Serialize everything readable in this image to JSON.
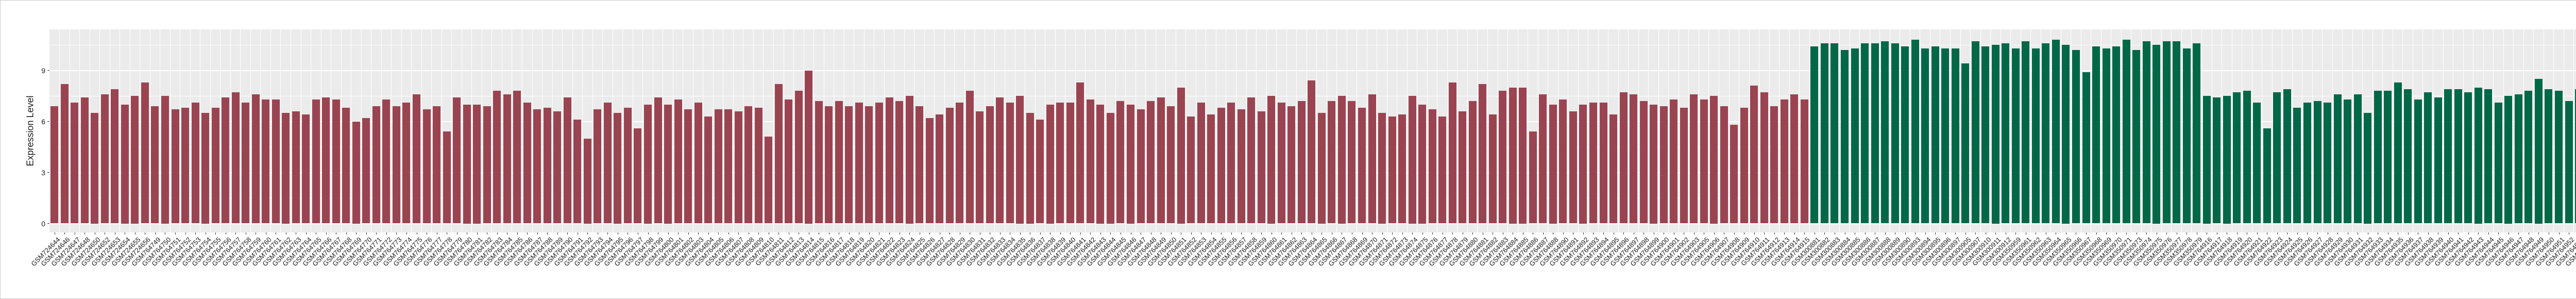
{
  "chart_data": {
    "type": "bar",
    "title": "",
    "xlabel": "",
    "ylabel": "Expression Level",
    "ylim": [
      0,
      11.4
    ],
    "yticks": [
      0,
      3,
      6,
      9
    ],
    "ytick_labels": [
      "0",
      "3",
      "6",
      "9"
    ],
    "yminor": [
      1.5,
      4.5,
      7.5,
      10.5
    ],
    "grid": true,
    "legend": false,
    "panel_background": "#EBEBEB",
    "gridline_color": "#FFFFFF",
    "axis_text_color": "#1a1a1a",
    "group_split_index": 175,
    "series": [
      {
        "name": "group-1-red",
        "color": "#9B4451",
        "count": 175
      },
      {
        "name": "group-2-green",
        "color": "#006847",
        "count": 86
      }
    ],
    "categories": [
      "GSM724644",
      "GSM724646",
      "GSM724647",
      "GSM724648",
      "GSM724650",
      "GSM724652",
      "GSM724653",
      "GSM724654",
      "GSM724655",
      "GSM724656",
      "GSM764749",
      "GSM764750",
      "GSM764751",
      "GSM764752",
      "GSM764753",
      "GSM764754",
      "GSM764755",
      "GSM764756",
      "GSM764757",
      "GSM764758",
      "GSM764759",
      "GSM764760",
      "GSM764761",
      "GSM764762",
      "GSM764763",
      "GSM764764",
      "GSM764765",
      "GSM764766",
      "GSM764767",
      "GSM764768",
      "GSM764769",
      "GSM764770",
      "GSM764771",
      "GSM764772",
      "GSM764773",
      "GSM764774",
      "GSM764775",
      "GSM764776",
      "GSM764777",
      "GSM764778",
      "GSM764779",
      "GSM764780",
      "GSM764781",
      "GSM764782",
      "GSM764783",
      "GSM764784",
      "GSM764785",
      "GSM764786",
      "GSM764787",
      "GSM764788",
      "GSM764789",
      "GSM764790",
      "GSM764791",
      "GSM764792",
      "GSM764793",
      "GSM764794",
      "GSM764795",
      "GSM764796",
      "GSM764797",
      "GSM764798",
      "GSM764799",
      "GSM764800",
      "GSM764801",
      "GSM764802",
      "GSM764803",
      "GSM764804",
      "GSM764805",
      "GSM764806",
      "GSM764807",
      "GSM764808",
      "GSM764809",
      "GSM764810",
      "GSM764811",
      "GSM764812",
      "GSM764813",
      "GSM764814",
      "GSM764815",
      "GSM764816",
      "GSM764817",
      "GSM764818",
      "GSM764819",
      "GSM764820",
      "GSM764821",
      "GSM764822",
      "GSM764823",
      "GSM764824",
      "GSM764825",
      "GSM764826",
      "GSM764827",
      "GSM764828",
      "GSM764829",
      "GSM764830",
      "GSM764831",
      "GSM764832",
      "GSM764833",
      "GSM764834",
      "GSM764835",
      "GSM764836",
      "GSM764837",
      "GSM764838",
      "GSM764839",
      "GSM764840",
      "GSM764841",
      "GSM764842",
      "GSM764843",
      "GSM764844",
      "GSM764845",
      "GSM764846",
      "GSM764847",
      "GSM764848",
      "GSM764849",
      "GSM764850",
      "GSM764851",
      "GSM764852",
      "GSM764853",
      "GSM764854",
      "GSM764855",
      "GSM764856",
      "GSM764857",
      "GSM764858",
      "GSM764859",
      "GSM764860",
      "GSM764861",
      "GSM764862",
      "GSM764863",
      "GSM764864",
      "GSM764865",
      "GSM764866",
      "GSM764867",
      "GSM764868",
      "GSM764869",
      "GSM764870",
      "GSM764871",
      "GSM764872",
      "GSM764873",
      "GSM764874",
      "GSM764875",
      "GSM764876",
      "GSM764877",
      "GSM764878",
      "GSM764879",
      "GSM764880",
      "GSM764881",
      "GSM764882",
      "GSM764883",
      "GSM764884",
      "GSM764885",
      "GSM764886",
      "GSM764887",
      "GSM764888",
      "GSM764890",
      "GSM764891",
      "GSM764892",
      "GSM764893",
      "GSM764894",
      "GSM764895",
      "GSM764896",
      "GSM764897",
      "GSM764898",
      "GSM764899",
      "GSM764900",
      "GSM764901",
      "GSM764902",
      "GSM764903",
      "GSM764905",
      "GSM764906",
      "GSM764907",
      "GSM764908",
      "GSM764909",
      "GSM764910",
      "GSM764911",
      "GSM764912",
      "GSM764913",
      "GSM764914",
      "GSM764915",
      "GSM300881",
      "GSM300882",
      "GSM300883",
      "GSM300884",
      "GSM300885",
      "GSM300886",
      "GSM300887",
      "GSM300888",
      "GSM300889",
      "GSM300890",
      "GSM300893",
      "GSM300894",
      "GSM300895",
      "GSM300896",
      "GSM300897",
      "GSM300905",
      "GSM300907",
      "GSM300910",
      "GSM300911",
      "GSM300912",
      "GSM350959",
      "GSM350961",
      "GSM350962",
      "GSM350963",
      "GSM350964",
      "GSM350965",
      "GSM350966",
      "GSM350967",
      "GSM350968",
      "GSM350969",
      "GSM350970",
      "GSM350971",
      "GSM350973",
      "GSM350974",
      "GSM350975",
      "GSM350976",
      "GSM350977",
      "GSM350978",
      "GSM350979",
      "GSM764916",
      "GSM764917",
      "GSM764918",
      "GSM764919",
      "GSM764920",
      "GSM764921",
      "GSM764922",
      "GSM764923",
      "GSM764924",
      "GSM764925",
      "GSM764926",
      "GSM764927",
      "GSM764928",
      "GSM764929",
      "GSM764930",
      "GSM764931",
      "GSM764932",
      "GSM764933",
      "GSM764934",
      "GSM764935",
      "GSM764936",
      "GSM764937",
      "GSM764938",
      "GSM764939",
      "GSM764940",
      "GSM764941",
      "GSM764942",
      "GSM764943",
      "GSM764944",
      "GSM764945",
      "GSM764946",
      "GSM764947",
      "GSM764948",
      "GSM764949",
      "GSM764950",
      "GSM764951",
      "GSM764952",
      "GSM764953",
      "GSM764954",
      "GSM764955",
      "GSM764956",
      "GSM764957",
      "GSM764958",
      "GSM764959",
      "GSM764960",
      "GSM80748",
      "GSM80749"
    ],
    "values": [
      6.9,
      8.2,
      7.1,
      7.4,
      6.5,
      7.6,
      7.9,
      7.0,
      7.5,
      8.3,
      6.9,
      7.5,
      6.7,
      6.8,
      7.1,
      6.5,
      6.8,
      7.4,
      7.7,
      7.1,
      7.6,
      7.3,
      7.3,
      6.5,
      6.6,
      6.4,
      7.3,
      7.4,
      7.3,
      6.8,
      6.0,
      6.2,
      6.9,
      7.3,
      6.9,
      7.1,
      7.6,
      6.7,
      6.9,
      5.4,
      7.4,
      7.0,
      7.0,
      6.9,
      7.8,
      7.6,
      7.8,
      7.1,
      6.7,
      6.8,
      6.6,
      7.4,
      6.1,
      5.0,
      6.7,
      7.1,
      6.5,
      6.8,
      5.6,
      7.0,
      7.4,
      7.0,
      7.3,
      6.7,
      7.1,
      6.3,
      6.7,
      6.7,
      6.6,
      6.9,
      6.8,
      5.1,
      8.2,
      7.3,
      7.8,
      9.0,
      7.2,
      6.9,
      7.2,
      6.9,
      7.1,
      6.9,
      7.1,
      7.4,
      7.2,
      7.5,
      6.9,
      6.2,
      6.4,
      6.8,
      7.1,
      7.8,
      6.6,
      6.9,
      7.4,
      7.1,
      7.5,
      6.5,
      6.1,
      7.0,
      7.1,
      7.1,
      8.3,
      7.3,
      7.0,
      6.5,
      7.2,
      7.0,
      6.7,
      7.2,
      7.4,
      6.9,
      8.0,
      6.3,
      7.1,
      6.4,
      6.8,
      7.1,
      6.7,
      7.4,
      6.6,
      7.5,
      7.1,
      6.9,
      7.2,
      8.4,
      6.5,
      7.2,
      7.5,
      7.2,
      6.8,
      7.6,
      6.5,
      6.3,
      6.4,
      7.5,
      7.0,
      6.7,
      6.3,
      8.3,
      6.6,
      7.2,
      8.2,
      6.4,
      7.8,
      8.0,
      8.0,
      5.4,
      7.6,
      7.0,
      7.3,
      6.6,
      7.0,
      7.1,
      7.1,
      6.4,
      7.7,
      7.6,
      7.2,
      7.0,
      6.9,
      7.3,
      6.8,
      7.6,
      7.3,
      7.5,
      6.9,
      5.8,
      6.8,
      8.1,
      7.7,
      6.9,
      7.3,
      7.6,
      7.3,
      10.4,
      10.6,
      10.6,
      10.2,
      10.3,
      10.6,
      10.6,
      10.7,
      10.6,
      10.4,
      10.8,
      10.3,
      10.4,
      10.3,
      10.3,
      9.4,
      10.7,
      10.4,
      10.5,
      10.6,
      10.3,
      10.7,
      10.3,
      10.6,
      10.8,
      10.5,
      10.2,
      8.9,
      10.4,
      10.3,
      10.4,
      10.8,
      10.2,
      10.7,
      10.5,
      10.7,
      10.7,
      10.3,
      10.6,
      7.5,
      7.4,
      7.5,
      7.7,
      7.8,
      7.1,
      5.6,
      7.7,
      7.9,
      6.8,
      7.1,
      7.2,
      7.1,
      7.6,
      7.3,
      7.6,
      6.5,
      7.8,
      7.8,
      8.3,
      7.9,
      7.3,
      7.7,
      7.4,
      7.9,
      7.9,
      7.7,
      8.0,
      7.9,
      7.1,
      7.5,
      7.6,
      7.8,
      8.5,
      7.9,
      7.8,
      7.2,
      7.9,
      7.6,
      6.8,
      7.9,
      7.5,
      6.8,
      7.1,
      7.8,
      5.9,
      6.4
    ]
  }
}
